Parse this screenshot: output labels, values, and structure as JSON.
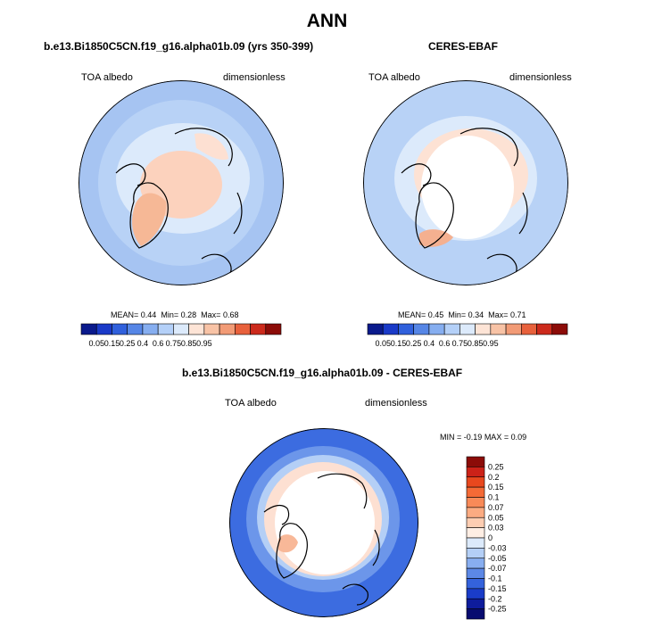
{
  "figure": {
    "title": "ANN"
  },
  "chart_data": [
    {
      "type": "heatmap",
      "projection": "north-polar-stereographic",
      "title": "b.e13.Bi1850C5CN.f19_g16.alpha01b.09 (yrs 350-399)",
      "left_label": "TOA albedo",
      "right_label": "dimensionless",
      "stats": {
        "mean_label": "MEAN=",
        "mean": "0.44",
        "min_label": "Min=",
        "min": "0.28",
        "max_label": "Max=",
        "max": "0.68"
      },
      "colorbar_orientation": "horizontal",
      "colorbar_ticks": [
        "0.05",
        "0.15",
        "0.25",
        "0.4",
        "0.6",
        "0.75",
        "0.85",
        "0.95"
      ],
      "colors": [
        "#0a1a8c",
        "#1a3ac8",
        "#3060dc",
        "#5686e6",
        "#86aef0",
        "#b4d0f8",
        "#dceafb",
        "#fde4d6",
        "#f8c3a6",
        "#f29b76",
        "#e8613c",
        "#cc2a1c",
        "#8c0c08"
      ]
    },
    {
      "type": "heatmap",
      "projection": "north-polar-stereographic",
      "title": "CERES-EBAF",
      "left_label": "TOA albedo",
      "right_label": "dimensionless",
      "stats": {
        "mean_label": "MEAN=",
        "mean": "0.45",
        "min_label": "Min=",
        "min": "0.34",
        "max_label": "Max=",
        "max": "0.71"
      },
      "colorbar_orientation": "horizontal",
      "colorbar_ticks": [
        "0.05",
        "0.15",
        "0.25",
        "0.4",
        "0.6",
        "0.75",
        "0.85",
        "0.95"
      ],
      "colors": [
        "#0a1a8c",
        "#1a3ac8",
        "#3060dc",
        "#5686e6",
        "#86aef0",
        "#b4d0f8",
        "#dceafb",
        "#fde4d6",
        "#f8c3a6",
        "#f29b76",
        "#e8613c",
        "#cc2a1c",
        "#8c0c08"
      ]
    },
    {
      "type": "heatmap",
      "projection": "north-polar-stereographic",
      "title": "b.e13.Bi1850C5CN.f19_g16.alpha01b.09 - CERES-EBAF",
      "left_label": "TOA albedo",
      "right_label": "dimensionless",
      "stats": {
        "min_label": "MIN =",
        "min": "-0.19",
        "max_label": "MAX =",
        "max": "0.09"
      },
      "colorbar_orientation": "vertical",
      "colorbar_ticks": [
        "0.25",
        "0.2",
        "0.15",
        "0.1",
        "0.07",
        "0.05",
        "0.03",
        "0",
        "-0.03",
        "-0.05",
        "-0.07",
        "-0.1",
        "-0.15",
        "-0.2",
        "-0.25"
      ],
      "colors": [
        "#8c0c08",
        "#cc2218",
        "#e8481e",
        "#f46a36",
        "#f88a58",
        "#fbab82",
        "#fdcdb2",
        "#feeee4",
        "#dceafb",
        "#b4cff6",
        "#88aef0",
        "#5c88e6",
        "#3462dc",
        "#1a3cc8",
        "#0e1c9c",
        "#080c70"
      ]
    }
  ]
}
